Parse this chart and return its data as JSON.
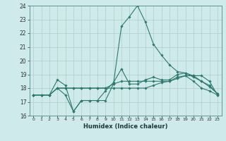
{
  "xlabel": "Humidex (Indice chaleur)",
  "x": [
    0,
    1,
    2,
    3,
    4,
    5,
    6,
    7,
    8,
    9,
    10,
    11,
    12,
    13,
    14,
    15,
    16,
    17,
    18,
    19,
    20,
    21,
    22,
    23
  ],
  "line1_y": [
    17.5,
    17.5,
    17.5,
    18.6,
    18.2,
    16.3,
    17.1,
    17.1,
    17.1,
    17.8,
    18.4,
    19.4,
    18.3,
    18.3,
    18.6,
    18.8,
    18.6,
    18.6,
    19.0,
    19.1,
    18.9,
    18.5,
    18.2,
    17.6
  ],
  "line2_y": [
    17.5,
    17.5,
    17.5,
    18.0,
    17.5,
    16.3,
    17.1,
    17.1,
    17.1,
    17.1,
    18.3,
    22.5,
    23.2,
    24.0,
    22.8,
    21.2,
    20.4,
    19.7,
    19.2,
    19.1,
    18.8,
    18.5,
    18.1,
    17.6
  ],
  "line3_y": [
    17.5,
    17.5,
    17.5,
    18.0,
    18.0,
    18.0,
    18.0,
    18.0,
    18.0,
    18.0,
    18.3,
    18.5,
    18.5,
    18.5,
    18.5,
    18.5,
    18.5,
    18.5,
    18.8,
    18.9,
    18.9,
    18.9,
    18.5,
    17.5
  ],
  "line4_y": [
    17.5,
    17.5,
    17.5,
    18.0,
    18.0,
    18.0,
    18.0,
    18.0,
    18.0,
    18.0,
    18.0,
    18.0,
    18.0,
    18.0,
    18.0,
    18.2,
    18.4,
    18.5,
    18.7,
    18.9,
    18.5,
    18.0,
    17.8,
    17.5
  ],
  "ylim": [
    16,
    24
  ],
  "yticks": [
    16,
    17,
    18,
    19,
    20,
    21,
    22,
    23,
    24
  ],
  "xticks": [
    0,
    1,
    2,
    3,
    4,
    5,
    6,
    7,
    8,
    9,
    10,
    11,
    12,
    13,
    14,
    15,
    16,
    17,
    18,
    19,
    20,
    21,
    22,
    23
  ],
  "line_color": "#2d7a6f",
  "bg_color": "#ceeaea",
  "grid_color": "#b4cccc",
  "marker": "D",
  "marker_size": 1.8,
  "lw": 0.8
}
